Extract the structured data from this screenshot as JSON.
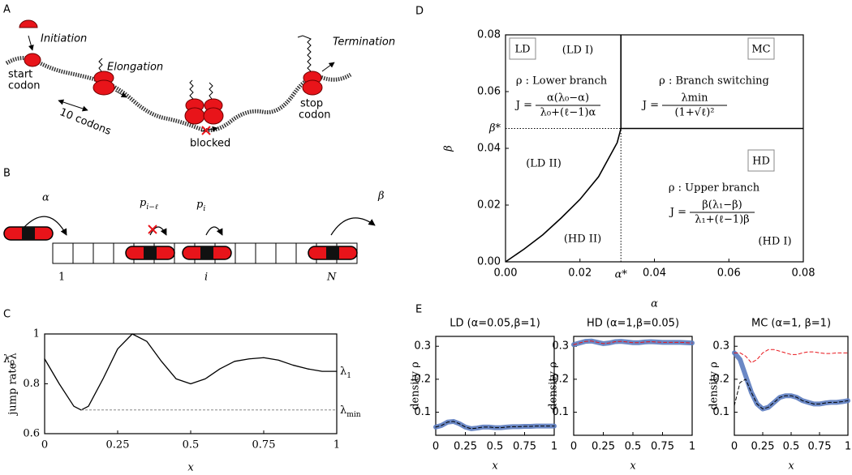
{
  "panel_labels": [
    "A",
    "B",
    "C",
    "D",
    "E"
  ],
  "panel_a": {
    "initiation": "Initiation",
    "start_codon": [
      "start",
      "codon"
    ],
    "elongation": "Elongation",
    "spacing": "10 codons",
    "blocked": "blocked",
    "termination": "Termination",
    "stop_codon": [
      "stop",
      "codon"
    ]
  },
  "panel_b": {
    "alpha": "α",
    "p_back": {
      "base": "p",
      "sub": "i−ℓ"
    },
    "p_i": {
      "base": "p",
      "sub": "i"
    },
    "beta": "β",
    "sites": [
      "1",
      "i",
      "N"
    ]
  },
  "chart_data": [
    {
      "type": "line",
      "ylabel": "jump rate λ",
      "xlabel": "x",
      "color": "#000000",
      "x": [
        0,
        0.05,
        0.1,
        0.125,
        0.15,
        0.2,
        0.25,
        0.3,
        0.35,
        0.4,
        0.45,
        0.5,
        0.55,
        0.6,
        0.65,
        0.7,
        0.75,
        0.8,
        0.85,
        0.9,
        0.95,
        1
      ],
      "values": [
        0.9,
        0.8,
        0.71,
        0.695,
        0.71,
        0.82,
        0.94,
        1.0,
        0.97,
        0.89,
        0.82,
        0.8,
        0.82,
        0.86,
        0.89,
        0.9,
        0.905,
        0.895,
        0.875,
        0.86,
        0.85,
        0.85
      ],
      "xlim": [
        0,
        1
      ],
      "ylim": [
        0.6,
        1
      ],
      "xticks": [
        0,
        0.25,
        0.5,
        0.75,
        1
      ],
      "yticks": [
        0.6,
        0.8,
        1
      ],
      "lambda_min": 0.695,
      "lambda_min_x": 0.125,
      "annotations": [
        {
          "base": "λ",
          "sub": "0"
        },
        {
          "base": "λ",
          "sub": "1"
        },
        {
          "base": "λ",
          "sub": "min"
        }
      ]
    },
    {
      "type": "phase",
      "xlabel": "α",
      "ylabel": "β",
      "color": "#000000",
      "xlim": [
        0,
        0.08
      ],
      "ylim": [
        0,
        0.08
      ],
      "xticks": [
        {
          "value": 0,
          "label": "0.00"
        },
        {
          "value": 0.02,
          "label": "0.02"
        },
        {
          "value": 0.04,
          "label": "0.04"
        },
        {
          "value": 0.06,
          "label": "0.06"
        },
        {
          "value": 0.08,
          "label": "0.08"
        }
      ],
      "yticks": [
        {
          "value": 0,
          "label": "0.00"
        },
        {
          "value": 0.02,
          "label": "0.02"
        },
        {
          "value": 0.04,
          "label": "0.04"
        },
        {
          "value": 0.06,
          "label": "0.06"
        },
        {
          "value": 0.08,
          "label": "0.08"
        }
      ],
      "alpha_star": {
        "value": 0.031,
        "label": "α*"
      },
      "beta_star": {
        "value": 0.047,
        "label": "β*"
      },
      "boundary": {
        "x": [
          0,
          0.005,
          0.01,
          0.015,
          0.02,
          0.025,
          0.03,
          0.031
        ],
        "values": [
          0,
          0.0045,
          0.0095,
          0.0155,
          0.022,
          0.03,
          0.042,
          0.047
        ]
      },
      "phases": [
        "LD",
        "MC",
        "HD"
      ],
      "regions": [
        "(LD I)",
        "(LD II)",
        "(HD II)",
        "(HD I)"
      ],
      "densities": [
        "ρ : Lower branch",
        "ρ : Branch switching",
        "ρ : Upper branch"
      ],
      "currents": [
        {
          "lhs": "J =",
          "num": "α(λ₀−α)",
          "den": "λ₀+(ℓ−1)α"
        },
        {
          "lhs": "J =",
          "num": "λmin",
          "den": "(1+√ℓ)²"
        },
        {
          "lhs": "J =",
          "num": "β(λ₁−β)",
          "den": "λ₁+(ℓ−1)β"
        }
      ]
    },
    {
      "type": "line",
      "title": "LD (α=0.05,β=1)",
      "ylabel": "density ρ",
      "xlabel": "x",
      "x": [
        0,
        0.05,
        0.1,
        0.15,
        0.2,
        0.25,
        0.3,
        0.35,
        0.4,
        0.45,
        0.5,
        0.55,
        0.6,
        0.65,
        0.7,
        0.75,
        0.8,
        0.85,
        0.9,
        0.95,
        1
      ],
      "series": [
        {
          "color": "#5b7bbf",
          "width": 6,
          "values": [
            0.055,
            0.06,
            0.07,
            0.072,
            0.065,
            0.055,
            0.05,
            0.052,
            0.055,
            0.055,
            0.053,
            0.053,
            0.055,
            0.056,
            0.056,
            0.057,
            0.057,
            0.058,
            0.058,
            0.058,
            0.058
          ]
        },
        {
          "color": "#000000",
          "width": 1,
          "dashed": true,
          "values": [
            0.055,
            0.06,
            0.07,
            0.072,
            0.065,
            0.055,
            0.05,
            0.052,
            0.055,
            0.055,
            0.053,
            0.053,
            0.055,
            0.056,
            0.056,
            0.057,
            0.057,
            0.058,
            0.058,
            0.058,
            0.058
          ]
        }
      ],
      "xlim": [
        0,
        1
      ],
      "ylim": [
        0.03,
        0.33
      ],
      "xticks": [
        0,
        0.25,
        0.5,
        0.75,
        1
      ],
      "yticks": [
        0.1,
        0.2,
        0.3
      ]
    },
    {
      "type": "line",
      "title": "HD (α=1,β=0.05)",
      "ylabel": "density ρ",
      "xlabel": "x",
      "x": [
        0,
        0.05,
        0.1,
        0.15,
        0.2,
        0.25,
        0.3,
        0.35,
        0.4,
        0.45,
        0.5,
        0.55,
        0.6,
        0.65,
        0.7,
        0.75,
        0.8,
        0.85,
        0.9,
        0.95,
        1
      ],
      "series": [
        {
          "color": "#5b7bbf",
          "width": 6,
          "values": [
            0.305,
            0.31,
            0.315,
            0.316,
            0.312,
            0.308,
            0.31,
            0.314,
            0.315,
            0.313,
            0.311,
            0.311,
            0.313,
            0.314,
            0.313,
            0.312,
            0.312,
            0.312,
            0.312,
            0.311,
            0.31
          ]
        },
        {
          "color": "#e8141a",
          "width": 1,
          "dashed": true,
          "values": [
            0.305,
            0.31,
            0.315,
            0.316,
            0.312,
            0.308,
            0.31,
            0.314,
            0.315,
            0.313,
            0.311,
            0.311,
            0.313,
            0.314,
            0.313,
            0.312,
            0.312,
            0.312,
            0.312,
            0.311,
            0.31
          ]
        }
      ],
      "xlim": [
        0,
        1
      ],
      "ylim": [
        0.03,
        0.33
      ],
      "xticks": [
        0,
        0.25,
        0.5,
        0.75,
        1
      ],
      "yticks": [
        0.1,
        0.2,
        0.3
      ]
    },
    {
      "type": "line",
      "title": "MC (α=1, β=1)",
      "ylabel": "density ρ",
      "xlabel": "x",
      "x": [
        0,
        0.05,
        0.1,
        0.15,
        0.2,
        0.25,
        0.3,
        0.35,
        0.4,
        0.45,
        0.5,
        0.55,
        0.6,
        0.65,
        0.7,
        0.75,
        0.8,
        0.85,
        0.9,
        0.95,
        1
      ],
      "series": [
        {
          "color": "#5b7bbf",
          "width": 6,
          "values": [
            0.28,
            0.26,
            0.21,
            0.16,
            0.125,
            0.11,
            0.115,
            0.13,
            0.145,
            0.15,
            0.15,
            0.145,
            0.135,
            0.13,
            0.125,
            0.125,
            0.128,
            0.13,
            0.13,
            0.132,
            0.135
          ]
        },
        {
          "color": "#000000",
          "width": 1,
          "dashed": true,
          "values": [
            0.12,
            0.19,
            0.2,
            0.16,
            0.125,
            0.11,
            0.115,
            0.13,
            0.145,
            0.15,
            0.15,
            0.145,
            0.135,
            0.13,
            0.125,
            0.125,
            0.128,
            0.13,
            0.13,
            0.132,
            0.135
          ]
        },
        {
          "color": "#e8141a",
          "width": 1,
          "dashed": true,
          "values": [
            0.28,
            0.28,
            0.27,
            0.25,
            0.26,
            0.28,
            0.29,
            0.29,
            0.285,
            0.28,
            0.275,
            0.275,
            0.28,
            0.283,
            0.283,
            0.28,
            0.278,
            0.278,
            0.28,
            0.28,
            0.28
          ]
        }
      ],
      "xlim": [
        0,
        1
      ],
      "ylim": [
        0.03,
        0.33
      ],
      "xticks": [
        0,
        0.25,
        0.5,
        0.75,
        1
      ],
      "yticks": [
        0.1,
        0.2,
        0.3
      ]
    }
  ]
}
